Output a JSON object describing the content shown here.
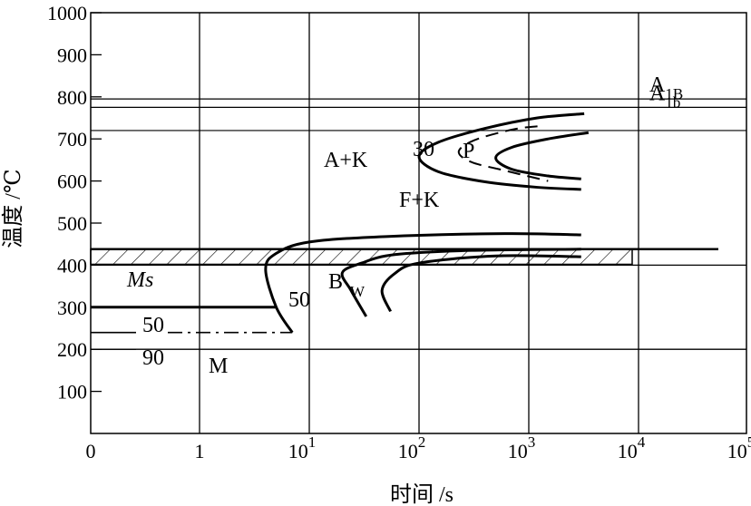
{
  "chart_data": {
    "type": "line",
    "ylabel": "温度 /℃",
    "xlabel": "时间 /s",
    "x_scale": "log",
    "xlim": [
      0,
      100000
    ],
    "ylim": [
      0,
      1000
    ],
    "x_ticks": [
      {
        "value": 0,
        "base": "0",
        "exp": ""
      },
      {
        "value": 1,
        "base": "1",
        "exp": ""
      },
      {
        "value": 10,
        "base": "10",
        "exp": "1"
      },
      {
        "value": 100,
        "base": "10",
        "exp": "2"
      },
      {
        "value": 1000,
        "base": "10",
        "exp": "3"
      },
      {
        "value": 10000,
        "base": "10",
        "exp": "4"
      },
      {
        "value": 100000,
        "base": "10",
        "exp": "5"
      }
    ],
    "y_ticks": [
      "100",
      "200",
      "300",
      "400",
      "500",
      "600",
      "700",
      "800",
      "900",
      "1000"
    ],
    "y_tick_values": [
      100,
      200,
      300,
      400,
      500,
      600,
      700,
      800,
      900,
      1000
    ],
    "reference_lines": [
      {
        "label": "A",
        "sub": "1B",
        "y": 795
      },
      {
        "label": "A",
        "sub": "1b",
        "y": 775
      },
      {
        "label": "",
        "sub": "",
        "y": 720
      }
    ],
    "hatched_band": {
      "y_from": 402,
      "y_to": 438
    },
    "region_labels": {
      "ak": "A+K",
      "fk": "F+K",
      "p": "P",
      "p_pct": "30",
      "b": "B",
      "b_sub": "W",
      "m": "M",
      "ms": "Ms",
      "pct50_mid": "50",
      "pct50_low": "50",
      "pct90": "90"
    },
    "ms_temperature": 300,
    "mf50_temperature": 240,
    "upper_c_curves": {
      "outer": [
        [
          3200,
          760
        ],
        [
          1200,
          750
        ],
        [
          400,
          725
        ],
        [
          150,
          692
        ],
        [
          100,
          658
        ],
        [
          150,
          622
        ],
        [
          400,
          598
        ],
        [
          1200,
          585
        ],
        [
          3000,
          580
        ]
      ],
      "inner": [
        [
          3500,
          715
        ],
        [
          1500,
          700
        ],
        [
          700,
          680
        ],
        [
          500,
          655
        ],
        [
          700,
          628
        ],
        [
          1500,
          612
        ],
        [
          3000,
          605
        ]
      ],
      "dashed": [
        [
          1200,
          730
        ],
        [
          700,
          722
        ],
        [
          320,
          697
        ],
        [
          230,
          670
        ],
        [
          300,
          645
        ],
        [
          600,
          625
        ],
        [
          1500,
          600
        ]
      ]
    },
    "lower_c_curves": {
      "start": [
        [
          3000,
          472
        ],
        [
          600,
          475
        ],
        [
          50,
          468
        ],
        [
          10,
          455
        ],
        [
          5,
          428
        ],
        [
          4,
          390
        ],
        [
          5,
          300
        ],
        [
          7,
          240
        ]
      ],
      "pct50": [
        [
          3000,
          438
        ],
        [
          300,
          435
        ],
        [
          60,
          425
        ],
        [
          30,
          405
        ],
        [
          20,
          382
        ],
        [
          24,
          340
        ],
        [
          33,
          278
        ]
      ],
      "end": [
        [
          3000,
          420
        ],
        [
          500,
          422
        ],
        [
          100,
          405
        ],
        [
          60,
          380
        ],
        [
          46,
          340
        ],
        [
          55,
          290
        ]
      ]
    }
  }
}
